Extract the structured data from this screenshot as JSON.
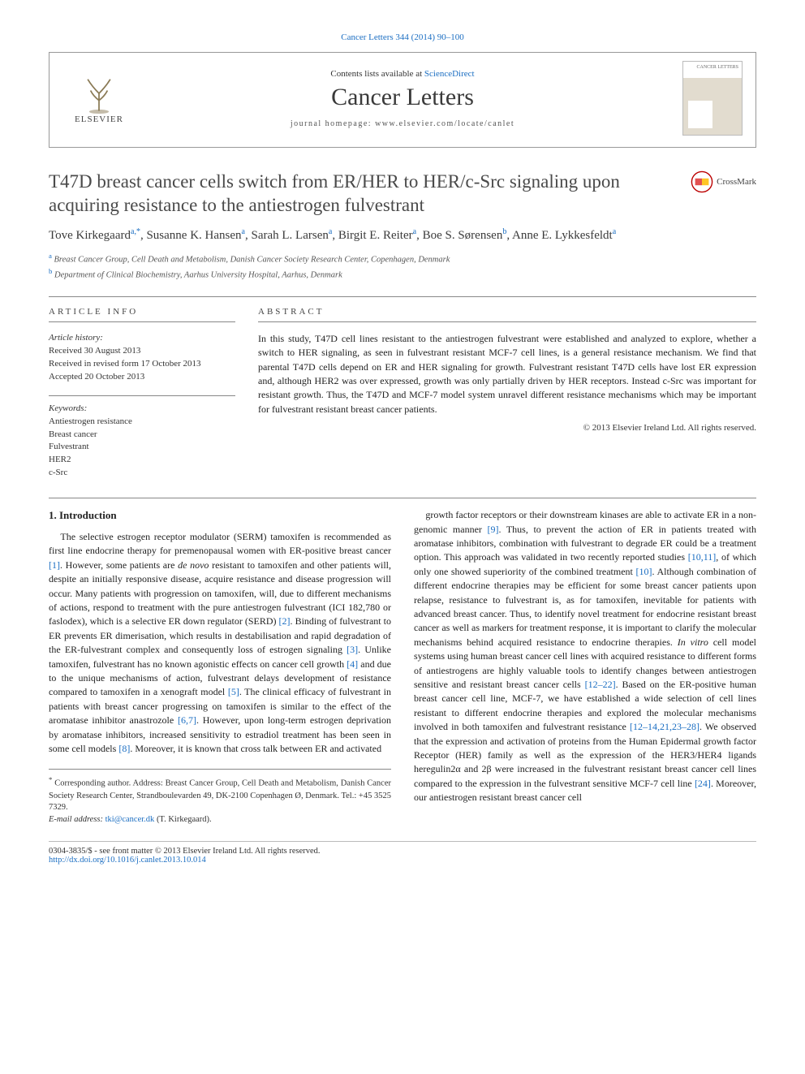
{
  "top_citation": {
    "journal": "Cancer Letters",
    "vol_issue_pages": "344 (2014) 90–100",
    "color": "#1b6ec2"
  },
  "masthead": {
    "contents_line_pre": "Contents lists available at ",
    "contents_link": "ScienceDirect",
    "journal_name": "Cancer Letters",
    "homepage_label": "journal homepage: ",
    "homepage_url": "www.elsevier.com/locate/canlet",
    "publisher_word": "ELSEVIER",
    "cover_label": "CANCER LETTERS"
  },
  "crossmark_label": "CrossMark",
  "title": "T47D breast cancer cells switch from ER/HER to HER/c-Src signaling upon acquiring resistance to the antiestrogen fulvestrant",
  "authors_html": "Tove Kirkegaard<sup>a,*</sup>, Susanne K. Hansen<sup>a</sup>, Sarah L. Larsen<sup>a</sup>, Birgit E. Reiter<sup>a</sup>, Boe S. Sørensen<sup>b</sup>, Anne E. Lykkesfeldt<sup>a</sup>",
  "affiliations": {
    "a": "Breast Cancer Group, Cell Death and Metabolism, Danish Cancer Society Research Center, Copenhagen, Denmark",
    "b": "Department of Clinical Biochemistry, Aarhus University Hospital, Aarhus, Denmark"
  },
  "article_info": {
    "heading": "article info",
    "history_heading": "Article history:",
    "history": [
      "Received 30 August 2013",
      "Received in revised form 17 October 2013",
      "Accepted 20 October 2013"
    ],
    "keywords_heading": "Keywords:",
    "keywords": [
      "Antiestrogen resistance",
      "Breast cancer",
      "Fulvestrant",
      "HER2",
      "c-Src"
    ]
  },
  "abstract": {
    "heading": "abstract",
    "text": "In this study, T47D cell lines resistant to the antiestrogen fulvestrant were established and analyzed to explore, whether a switch to HER signaling, as seen in fulvestrant resistant MCF-7 cell lines, is a general resistance mechanism. We find that parental T47D cells depend on ER and HER signaling for growth. Fulvestrant resistant T47D cells have lost ER expression and, although HER2 was over expressed, growth was only partially driven by HER receptors. Instead c-Src was important for resistant growth. Thus, the T47D and MCF-7 model system unravel different resistance mechanisms which may be important for fulvestrant resistant breast cancer patients.",
    "copyright": "© 2013 Elsevier Ireland Ltd. All rights reserved."
  },
  "intro_heading": "1. Introduction",
  "intro_paragraphs": [
    "The selective estrogen receptor modulator (SERM) tamoxifen is recommended as first line endocrine therapy for premenopausal women with ER-positive breast cancer [1]. However, some patients are de novo resistant to tamoxifen and other patients will, despite an initially responsive disease, acquire resistance and disease progression will occur. Many patients with progression on tamoxifen, will, due to different mechanisms of actions, respond to treatment with the pure antiestrogen fulvestrant (ICI 182,780 or faslodex), which is a selective ER down regulator (SERD) [2]. Binding of fulvestrant to ER prevents ER dimerisation, which results in destabilisation and rapid degradation of the ER-fulvestrant complex and consequently loss of estrogen signaling [3]. Unlike tamoxifen, fulvestrant has no known agonistic effects on cancer cell growth [4] and due to the unique mechanisms of action, fulvestrant delays development of resistance compared to tamoxifen in a xenograft model [5]. The clinical efficacy of fulvestrant in patients with breast cancer progressing on tamoxifen is similar to the effect of the aromatase inhibitor anastrozole [6,7]. However, upon long-term estrogen deprivation by aromatase inhibitors, increased sensitivity to estradiol treatment has been seen in some cell models [8]. Moreover, it is known that cross talk between ER and activated",
    "growth factor receptors or their downstream kinases are able to activate ER in a non-genomic manner [9]. Thus, to prevent the action of ER in patients treated with aromatase inhibitors, combination with fulvestrant to degrade ER could be a treatment option. This approach was validated in two recently reported studies [10,11], of which only one showed superiority of the combined treatment [10]. Although combination of different endocrine therapies may be efficient for some breast cancer patients upon relapse, resistance to fulvestrant is, as for tamoxifen, inevitable for patients with advanced breast cancer. Thus, to identify novel treatment for endocrine resistant breast cancer as well as markers for treatment response, it is important to clarify the molecular mechanisms behind acquired resistance to endocrine therapies. In vitro cell model systems using human breast cancer cell lines with acquired resistance to different forms of antiestrogens are highly valuable tools to identify changes between antiestrogen sensitive and resistant breast cancer cells [12–22]. Based on the ER-positive human breast cancer cell line, MCF-7, we have established a wide selection of cell lines resistant to different endocrine therapies and explored the molecular mechanisms involved in both tamoxifen and fulvestrant resistance [12–14,21,23–28]. We observed that the expression and activation of proteins from the Human Epidermal growth factor Receptor (HER) family as well as the expression of the HER3/HER4 ligands heregulin2α and 2β were increased in the fulvestrant resistant breast cancer cell lines compared to the expression in the fulvestrant sensitive MCF-7 cell line [24]. Moreover, our antiestrogen resistant breast cancer cell"
  ],
  "corresponding": {
    "star": "*",
    "text": "Corresponding author. Address: Breast Cancer Group, Cell Death and Metabolism, Danish Cancer Society Research Center, Strandboulevarden 49, DK-2100 Copenhagen Ø, Denmark. Tel.: +45 3525 7329.",
    "email_label": "E-mail address:",
    "email": "tki@cancer.dk",
    "email_who": "(T. Kirkegaard)."
  },
  "footer": {
    "issn_line": "0304-3835/$ - see front matter © 2013 Elsevier Ireland Ltd. All rights reserved.",
    "doi_label": "http://dx.doi.org/",
    "doi": "10.1016/j.canlet.2013.10.014"
  },
  "colors": {
    "link": "#1b6ec2",
    "text": "#222222",
    "muted": "#555555",
    "rule": "#888888"
  },
  "fonts": {
    "body_family": "Times New Roman, Charis SIL, serif",
    "title_size_pt": 17,
    "body_size_pt": 9,
    "small_size_pt": 8
  }
}
